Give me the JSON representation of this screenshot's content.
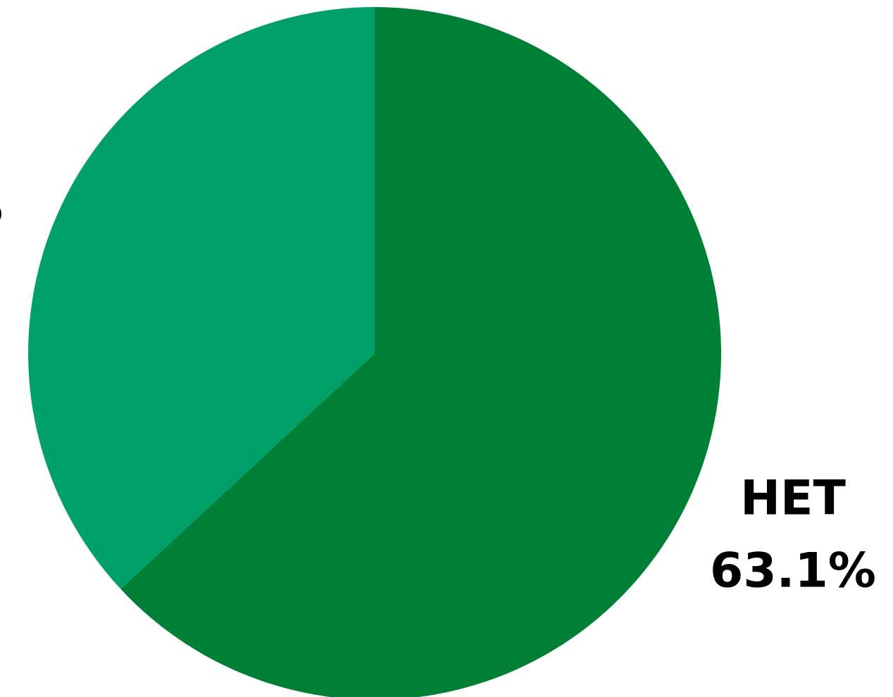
{
  "chart_data": {
    "type": "pie",
    "slices": [
      {
        "label": "HET",
        "value": 63.1,
        "value_label": "63.1%",
        "color": "#008037"
      },
      {
        "label": "",
        "value": 36.9,
        "value_label": "",
        "color": "#00A06A"
      }
    ],
    "start_angle_deg": 0,
    "direction": "clockwise",
    "title": "",
    "legend": "none"
  }
}
